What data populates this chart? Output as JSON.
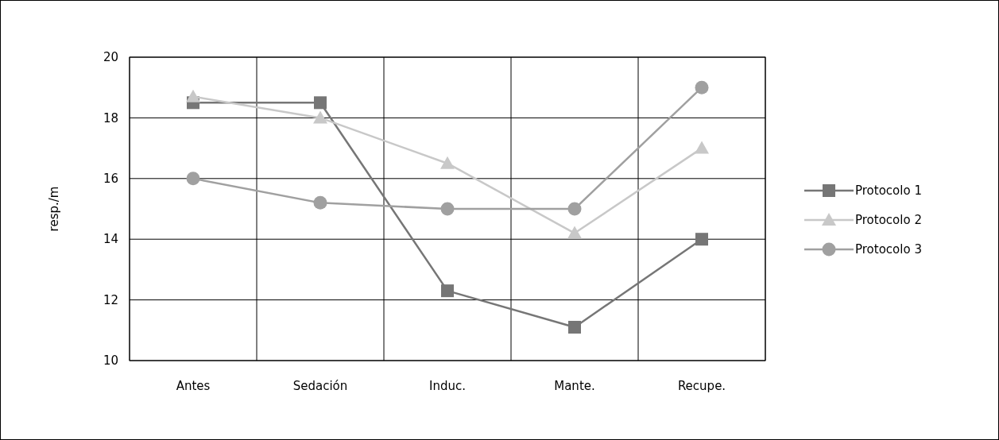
{
  "chart_data": {
    "type": "line",
    "ylabel": "resp./m",
    "categories": [
      "Antes",
      "Sedación",
      "Induc.",
      "Mante.",
      "Recupe."
    ],
    "series": [
      {
        "name": "Protocolo 1",
        "color": "#767676",
        "marker": "square",
        "values": [
          18.5,
          18.5,
          12.3,
          11.1,
          14.0
        ]
      },
      {
        "name": "Protocolo 2",
        "color": "#c8c8c8",
        "marker": "triangle",
        "values": [
          18.7,
          18.0,
          16.5,
          14.2,
          17.0
        ]
      },
      {
        "name": "Protocolo 3",
        "color": "#a0a0a0",
        "marker": "circle",
        "values": [
          16.0,
          15.2,
          15.0,
          15.0,
          19.0
        ]
      }
    ],
    "ylim": [
      10,
      20
    ],
    "yticks": [
      10,
      12,
      14,
      16,
      18,
      20
    ],
    "grid": true,
    "legend": "right"
  }
}
